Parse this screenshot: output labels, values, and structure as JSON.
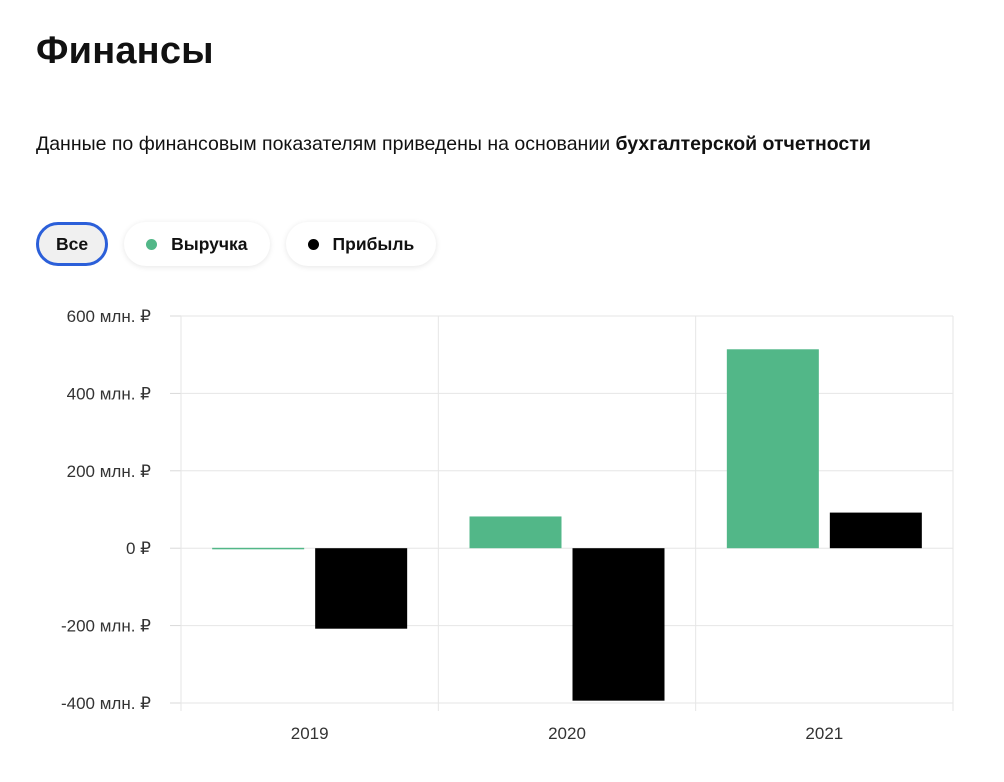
{
  "section": {
    "title": "Финансы",
    "description_prefix": "Данные по финансовым показателям приведены на основании ",
    "description_link": "бухгалтерской отчетности"
  },
  "filters": [
    {
      "label": "Все",
      "active": true
    },
    {
      "label": "Выручка",
      "color": "#52b788",
      "active": false
    },
    {
      "label": "Прибыль",
      "color": "#000000",
      "active": false
    }
  ],
  "chart_data": {
    "type": "bar",
    "categories": [
      "2019",
      "2020",
      "2021"
    ],
    "series": [
      {
        "name": "Выручка",
        "color": "#52b788",
        "values": [
          1,
          82,
          514
        ]
      },
      {
        "name": "Прибыль",
        "color": "#000000",
        "values": [
          -208,
          -394,
          92
        ]
      }
    ],
    "ylim": [
      -400,
      600
    ],
    "yticks": [
      600,
      400,
      200,
      0,
      -200,
      -400
    ],
    "ytick_labels": [
      "600 млн. ₽",
      "400 млн. ₽",
      "200 млн. ₽",
      "0 ₽",
      "-200 млн. ₽",
      "-400 млн. ₽"
    ],
    "xlabel": "",
    "ylabel": "",
    "grid": true,
    "legend": "top-left"
  }
}
